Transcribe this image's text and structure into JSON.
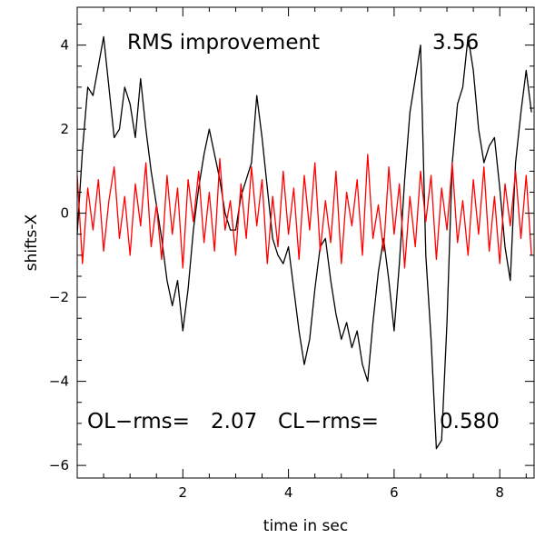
{
  "chart_data": {
    "type": "line",
    "xlabel": "time in sec",
    "ylabel": "shifts-X",
    "xlim": [
      0,
      8.65
    ],
    "ylim": [
      -6.3,
      4.9
    ],
    "x_ticks": [
      2,
      4,
      6,
      8
    ],
    "y_ticks": [
      -6,
      -4,
      -2,
      0,
      2,
      4
    ],
    "annotations": {
      "rms_label": "RMS improvement",
      "rms_value": "3.56",
      "ol_label": "OL−rms=",
      "ol_value": "2.07",
      "cl_label": "CL−rms=",
      "cl_value": "0.580"
    },
    "series": [
      {
        "color": "#000000",
        "x": [
          0.0,
          0.1,
          0.2,
          0.3,
          0.4,
          0.5,
          0.6,
          0.7,
          0.8,
          0.9,
          1.0,
          1.1,
          1.2,
          1.3,
          1.4,
          1.5,
          1.6,
          1.7,
          1.8,
          1.9,
          2.0,
          2.1,
          2.2,
          2.3,
          2.4,
          2.5,
          2.6,
          2.7,
          2.8,
          2.9,
          3.0,
          3.1,
          3.2,
          3.3,
          3.4,
          3.5,
          3.6,
          3.7,
          3.8,
          3.9,
          4.0,
          4.1,
          4.2,
          4.3,
          4.4,
          4.5,
          4.6,
          4.7,
          4.8,
          4.9,
          5.0,
          5.1,
          5.2,
          5.3,
          5.4,
          5.5,
          5.6,
          5.7,
          5.8,
          5.9,
          6.0,
          6.1,
          6.2,
          6.3,
          6.4,
          6.5,
          6.6,
          6.7,
          6.8,
          6.9,
          7.0,
          7.1,
          7.2,
          7.3,
          7.4,
          7.5,
          7.6,
          7.7,
          7.8,
          7.9,
          8.0,
          8.1,
          8.2,
          8.3,
          8.4,
          8.5,
          8.6
        ],
        "y": [
          -0.5,
          1.5,
          3.0,
          2.8,
          3.5,
          4.2,
          3.0,
          1.8,
          2.0,
          3.0,
          2.6,
          1.8,
          3.2,
          2.0,
          1.0,
          0.2,
          -0.6,
          -1.6,
          -2.2,
          -1.6,
          -2.8,
          -1.8,
          -0.4,
          0.6,
          1.4,
          2.0,
          1.4,
          0.8,
          0.0,
          -0.4,
          -0.4,
          0.4,
          0.8,
          1.2,
          2.8,
          1.8,
          0.6,
          -0.6,
          -1.0,
          -1.2,
          -0.8,
          -1.8,
          -2.8,
          -3.6,
          -3.0,
          -1.8,
          -0.8,
          -0.6,
          -1.6,
          -2.4,
          -3.0,
          -2.6,
          -3.2,
          -2.8,
          -3.6,
          -4.0,
          -2.6,
          -1.4,
          -0.6,
          -1.6,
          -2.8,
          -1.2,
          0.8,
          2.4,
          3.2,
          4.0,
          -1.0,
          -3.0,
          -5.6,
          -5.4,
          -2.6,
          1.2,
          2.6,
          3.0,
          4.2,
          3.4,
          2.0,
          1.2,
          1.6,
          1.8,
          0.6,
          -0.8,
          -1.6,
          1.2,
          2.4,
          3.4,
          2.4
        ]
      },
      {
        "color": "#ff0000",
        "x": [
          0.0,
          0.1,
          0.2,
          0.3,
          0.4,
          0.5,
          0.6,
          0.7,
          0.8,
          0.9,
          1.0,
          1.1,
          1.2,
          1.3,
          1.4,
          1.5,
          1.6,
          1.7,
          1.8,
          1.9,
          2.0,
          2.1,
          2.2,
          2.3,
          2.4,
          2.5,
          2.6,
          2.7,
          2.8,
          2.9,
          3.0,
          3.1,
          3.2,
          3.3,
          3.4,
          3.5,
          3.6,
          3.7,
          3.8,
          3.9,
          4.0,
          4.1,
          4.2,
          4.3,
          4.4,
          4.5,
          4.6,
          4.7,
          4.8,
          4.9,
          5.0,
          5.1,
          5.2,
          5.3,
          5.4,
          5.5,
          5.6,
          5.7,
          5.8,
          5.9,
          6.0,
          6.1,
          6.2,
          6.3,
          6.4,
          6.5,
          6.6,
          6.7,
          6.8,
          6.9,
          7.0,
          7.1,
          7.2,
          7.3,
          7.4,
          7.5,
          7.6,
          7.7,
          7.8,
          7.9,
          8.0,
          8.1,
          8.2,
          8.3,
          8.4,
          8.5,
          8.6
        ],
        "y": [
          0.9,
          -1.2,
          0.6,
          -0.4,
          0.8,
          -0.9,
          0.3,
          1.1,
          -0.6,
          0.4,
          -1.0,
          0.7,
          -0.3,
          1.2,
          -0.8,
          0.2,
          -1.1,
          0.9,
          -0.5,
          0.6,
          -1.3,
          0.8,
          -0.2,
          1.0,
          -0.7,
          0.5,
          -0.9,
          1.3,
          -0.4,
          0.3,
          -1.0,
          0.7,
          -0.6,
          1.1,
          -0.3,
          0.8,
          -1.2,
          0.4,
          -0.8,
          1.0,
          -0.5,
          0.6,
          -1.1,
          0.9,
          -0.4,
          1.2,
          -0.9,
          0.3,
          -0.7,
          1.0,
          -1.2,
          0.5,
          -0.3,
          0.8,
          -1.0,
          1.4,
          -0.6,
          0.2,
          -0.9,
          1.1,
          -0.5,
          0.7,
          -1.3,
          0.4,
          -0.8,
          1.0,
          -0.2,
          0.9,
          -1.1,
          0.6,
          -0.4,
          1.2,
          -0.7,
          0.3,
          -1.0,
          0.8,
          -0.5,
          1.1,
          -0.9,
          0.4,
          -1.2,
          0.7,
          -0.3,
          1.0,
          -0.6,
          0.9,
          -1.0
        ]
      }
    ]
  }
}
